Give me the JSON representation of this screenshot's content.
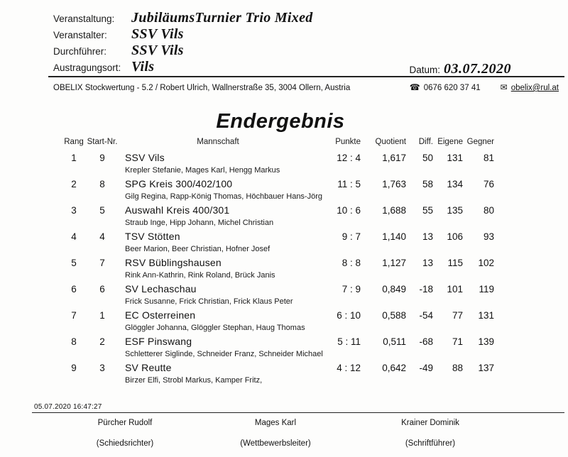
{
  "header": {
    "fields": [
      {
        "label": "Veranstaltung:",
        "value": "JubiläumsTurnier Trio Mixed"
      },
      {
        "label": "Veranstalter:",
        "value": "SSV Vils"
      },
      {
        "label": "Durchführer:",
        "value": "SSV Vils"
      },
      {
        "label": "Austragungsort:",
        "value": "Vils"
      }
    ],
    "datum_label": "Datum:",
    "datum_value": "03.07.2020"
  },
  "software_line": {
    "text": "OBELIX Stockwertung - 5.2 / Robert Ulrich, Wallnerstraße 35, 3004 Ollern, Austria",
    "phone_icon": "☎",
    "phone": "0676 620 37 41",
    "email_icon": "✉",
    "email": "obelix@rul.at"
  },
  "title": "Endergebnis",
  "table": {
    "columns": {
      "rang": "Rang",
      "start_nr": "Start-Nr.",
      "mannschaft": "Mannschaft",
      "punkte": "Punkte",
      "quotient": "Quotient",
      "diff": "Diff.",
      "eigene": "Eigene",
      "gegner": "Gegner"
    },
    "rows": [
      {
        "rang": "1",
        "start_nr": "9",
        "mannschaft": "SSV Vils",
        "mitglieder": "Krepler Stefanie, Mages Karl, Hengg Markus",
        "punkte": "12 : 4",
        "quotient": "1,617",
        "diff": "50",
        "eigene": "131",
        "gegner": "81"
      },
      {
        "rang": "2",
        "start_nr": "8",
        "mannschaft": "SPG Kreis 300/402/100",
        "mitglieder": "Gilg Regina, Rapp-König Thomas, Höchbauer Hans-Jörg",
        "punkte": "11 : 5",
        "quotient": "1,763",
        "diff": "58",
        "eigene": "134",
        "gegner": "76"
      },
      {
        "rang": "3",
        "start_nr": "5",
        "mannschaft": "Auswahl Kreis 400/301",
        "mitglieder": "Straub Inge, Hipp Johann, Michel Christian",
        "punkte": "10 : 6",
        "quotient": "1,688",
        "diff": "55",
        "eigene": "135",
        "gegner": "80"
      },
      {
        "rang": "4",
        "start_nr": "4",
        "mannschaft": "TSV Stötten",
        "mitglieder": "Beer Marion, Beer Christian, Hofner Josef",
        "punkte": "9 : 7",
        "quotient": "1,140",
        "diff": "13",
        "eigene": "106",
        "gegner": "93"
      },
      {
        "rang": "5",
        "start_nr": "7",
        "mannschaft": "RSV Büblingshausen",
        "mitglieder": "Rink Ann-Kathrin, Rink Roland, Brück Janis",
        "punkte": "8 : 8",
        "quotient": "1,127",
        "diff": "13",
        "eigene": "115",
        "gegner": "102"
      },
      {
        "rang": "6",
        "start_nr": "6",
        "mannschaft": "SV Lechaschau",
        "mitglieder": "Frick Susanne, Frick Christian, Frick Klaus Peter",
        "punkte": "7 : 9",
        "quotient": "0,849",
        "diff": "-18",
        "eigene": "101",
        "gegner": "119"
      },
      {
        "rang": "7",
        "start_nr": "1",
        "mannschaft": "EC Osterreinen",
        "mitglieder": "Glöggler Johanna, Glöggler Stephan, Haug Thomas",
        "punkte": "6 : 10",
        "quotient": "0,588",
        "diff": "-54",
        "eigene": "77",
        "gegner": "131"
      },
      {
        "rang": "8",
        "start_nr": "2",
        "mannschaft": "ESF Pinswang",
        "mitglieder": "Schletterer Siglinde, Schneider Franz, Schneider Michael",
        "punkte": "5 : 11",
        "quotient": "0,511",
        "diff": "-68",
        "eigene": "71",
        "gegner": "139"
      },
      {
        "rang": "9",
        "start_nr": "3",
        "mannschaft": "SV Reutte",
        "mitglieder": "Birzer Elfi, Strobl Markus, Kamper Fritz,",
        "punkte": "4 : 12",
        "quotient": "0,642",
        "diff": "-49",
        "eigene": "88",
        "gegner": "137"
      }
    ]
  },
  "footer": {
    "timestamp": "05.07.2020 16:47:27",
    "signatures": [
      {
        "name": "Pürcher Rudolf",
        "role": "(Schiedsrichter)"
      },
      {
        "name": "Mages Karl",
        "role": "(Wettbewerbsleiter)"
      },
      {
        "name": "Krainer Dominik",
        "role": "(Schriftführer)"
      }
    ]
  }
}
